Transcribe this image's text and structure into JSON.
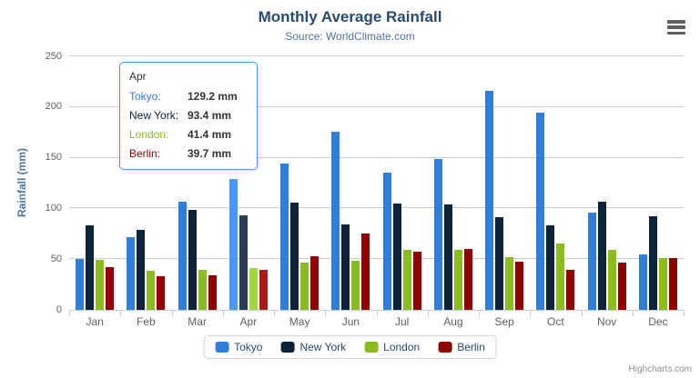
{
  "chart_data": {
    "type": "bar",
    "title": "Monthly Average Rainfall",
    "subtitle": "Source: WorldClimate.com",
    "categories": [
      "Jan",
      "Feb",
      "Mar",
      "Apr",
      "May",
      "Jun",
      "Jul",
      "Aug",
      "Sep",
      "Oct",
      "Nov",
      "Dec"
    ],
    "series": [
      {
        "name": "Tokyo",
        "color": "#2f7ed8",
        "values": [
          49.9,
          71.5,
          106.4,
          129.2,
          144.0,
          176.0,
          135.6,
          148.5,
          216.4,
          194.1,
          95.6,
          54.4
        ]
      },
      {
        "name": "New York",
        "color": "#0d233a",
        "values": [
          83.6,
          78.8,
          98.5,
          93.4,
          106.0,
          84.5,
          105.0,
          104.3,
          91.2,
          83.5,
          106.6,
          92.3
        ]
      },
      {
        "name": "London",
        "color": "#8bbc21",
        "values": [
          48.9,
          38.8,
          39.3,
          41.4,
          47.0,
          48.3,
          59.0,
          59.6,
          52.4,
          65.2,
          59.3,
          51.2
        ]
      },
      {
        "name": "Berlin",
        "color": "#910000",
        "values": [
          42.4,
          33.2,
          34.5,
          39.7,
          52.6,
          75.5,
          57.4,
          60.4,
          47.6,
          39.1,
          46.8,
          51.1
        ]
      }
    ],
    "xlabel": "",
    "ylabel": "Rainfall (mm)",
    "ylim": [
      0,
      250
    ],
    "yticks": [
      0,
      50,
      100,
      150,
      200,
      250
    ],
    "grid": true,
    "legend_position": "bottom",
    "hover_category": "Apr"
  },
  "tooltip": {
    "category": "Apr",
    "rows": [
      {
        "series": "Tokyo",
        "value": "129.2 mm"
      },
      {
        "series": "New York",
        "value": "93.4 mm"
      },
      {
        "series": "London",
        "value": "41.4 mm"
      },
      {
        "series": "Berlin",
        "value": "39.7 mm"
      }
    ]
  },
  "export_menu": {
    "icon": "hamburger-menu-icon"
  },
  "credits": "Highcharts.com"
}
